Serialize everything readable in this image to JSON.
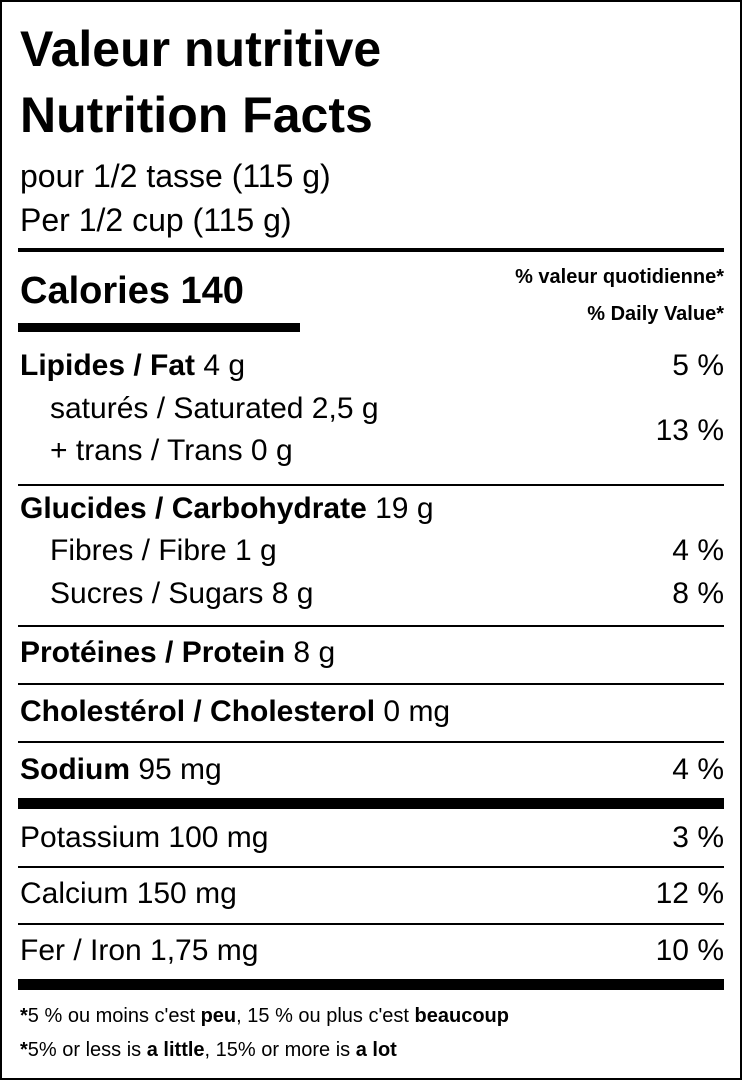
{
  "header": {
    "title_fr": "Valeur nutritive",
    "title_en": "Nutrition Facts",
    "serving_fr": "pour 1/2 tasse (115 g)",
    "serving_en": "Per 1/2 cup (115 g)"
  },
  "calories": {
    "label": "Calories",
    "value": 140
  },
  "daily_value_header": {
    "fr": "% valeur quotidienne*",
    "en": "% Daily Value*"
  },
  "fat": {
    "name": "Lipides / Fat",
    "amount": "4 g",
    "dv": "5 %"
  },
  "fat_sub": {
    "saturated": "saturés / Saturated 2,5 g",
    "trans": "+ trans / Trans 0 g",
    "dv": "13 %"
  },
  "carbohydrate": {
    "name": "Glucides / Carbohydrate",
    "amount": "19 g"
  },
  "fibre": {
    "name": "Fibres / Fibre 1 g",
    "dv": "4 %"
  },
  "sugars": {
    "name": "Sucres / Sugars 8 g",
    "dv": "8 %"
  },
  "protein": {
    "name": "Protéines / Protein",
    "amount": "8 g"
  },
  "cholesterol": {
    "name": "Cholestérol / Cholesterol",
    "amount": "0 mg"
  },
  "sodium": {
    "name": "Sodium",
    "amount": "95 mg",
    "dv": "4 %"
  },
  "minerals": [
    {
      "name": "Potassium 100 mg",
      "dv": "3 %"
    },
    {
      "name": "Calcium 150 mg",
      "dv": "12 %"
    },
    {
      "name": "Fer / Iron 1,75 mg",
      "dv": "10 %"
    }
  ],
  "footnote": {
    "fr": [
      "*",
      "5 % ou moins c'est ",
      "peu",
      ", 15 % ou plus c'est ",
      "beaucoup"
    ],
    "en": [
      "*",
      "5% or less is ",
      "a little",
      ", 15% or more is ",
      "a lot"
    ]
  }
}
